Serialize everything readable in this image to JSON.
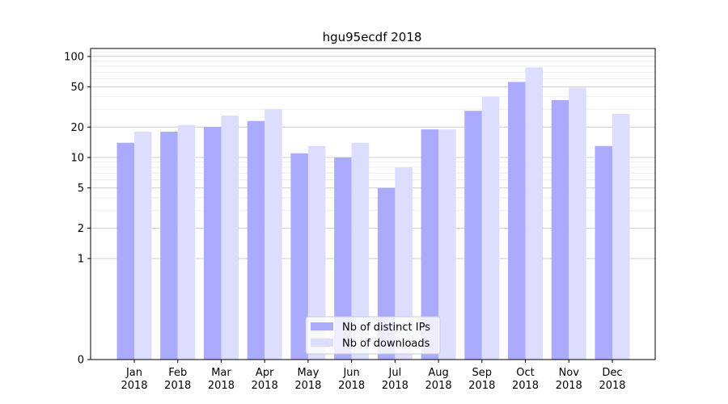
{
  "chart_data": {
    "type": "bar",
    "title": "hgu95ecdf 2018",
    "xlabel": "",
    "ylabel": "",
    "y_scale": "symlog",
    "ylim": [
      0,
      120
    ],
    "y_ticks": [
      0,
      1,
      2,
      5,
      10,
      20,
      50,
      100
    ],
    "grid": true,
    "legend_position": "bottom-center",
    "categories": [
      [
        "Jan",
        "2018"
      ],
      [
        "Feb",
        "2018"
      ],
      [
        "Mar",
        "2018"
      ],
      [
        "Apr",
        "2018"
      ],
      [
        "May",
        "2018"
      ],
      [
        "Jun",
        "2018"
      ],
      [
        "Jul",
        "2018"
      ],
      [
        "Aug",
        "2018"
      ],
      [
        "Sep",
        "2018"
      ],
      [
        "Oct",
        "2018"
      ],
      [
        "Nov",
        "2018"
      ],
      [
        "Dec",
        "2018"
      ]
    ],
    "series": [
      {
        "name": "Nb of distinct IPs",
        "color": "#aaaaff",
        "values": [
          14,
          18,
          20,
          23,
          11,
          10,
          5,
          19,
          29,
          56,
          37,
          13
        ]
      },
      {
        "name": "Nb of downloads",
        "color": "#ddddff",
        "values": [
          18,
          21,
          26,
          30,
          13,
          14,
          8,
          19,
          40,
          78,
          49,
          27
        ]
      }
    ]
  }
}
